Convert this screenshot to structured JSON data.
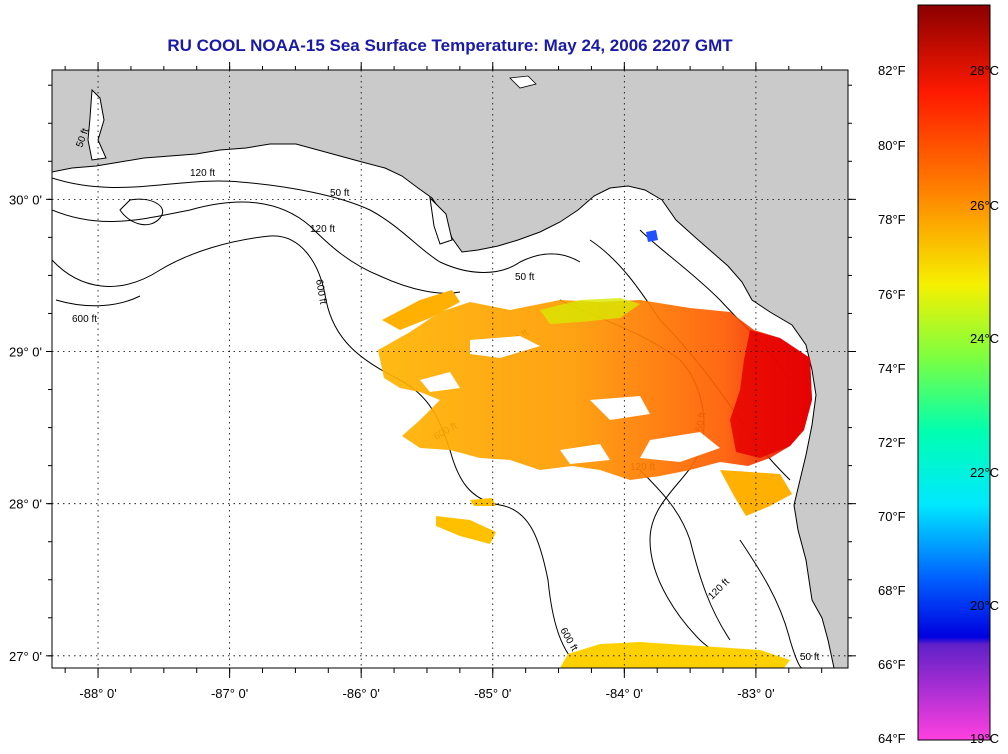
{
  "title": "RU COOL  NOAA-15  Sea Surface Temperature:  May 24, 2006 2207 GMT",
  "colors": {
    "title": "#1a1aa8",
    "land": "#cacaca",
    "ocean": "#ffffff"
  },
  "map": {
    "lon_range": [
      -88.35,
      -82.3
    ],
    "lat_range": [
      26.92,
      30.85
    ],
    "lon_ticks": [
      {
        "value": -88,
        "label": "-88° 0'"
      },
      {
        "value": -87,
        "label": "-87° 0'"
      },
      {
        "value": -86,
        "label": "-86° 0'"
      },
      {
        "value": -85,
        "label": "-85° 0'"
      },
      {
        "value": -84,
        "label": "-84° 0'"
      },
      {
        "value": -83,
        "label": "-83° 0'"
      }
    ],
    "lat_ticks": [
      {
        "value": 30,
        "label": "30° 0'"
      },
      {
        "value": 29,
        "label": "29° 0'"
      },
      {
        "value": 28,
        "label": "28° 0'"
      },
      {
        "value": 27,
        "label": "27° 0'"
      }
    ],
    "contour_labels": [
      "50 ft",
      "120 ft",
      "600 ft"
    ]
  },
  "colorbar": {
    "f_labels": [
      "82°F",
      "80°F",
      "78°F",
      "76°F",
      "74°F",
      "72°F",
      "70°F",
      "68°F",
      "66°F",
      "64°F"
    ],
    "c_labels": [
      "28°C",
      "26°C",
      "24°C",
      "22°C",
      "20°C",
      "19°C"
    ]
  }
}
